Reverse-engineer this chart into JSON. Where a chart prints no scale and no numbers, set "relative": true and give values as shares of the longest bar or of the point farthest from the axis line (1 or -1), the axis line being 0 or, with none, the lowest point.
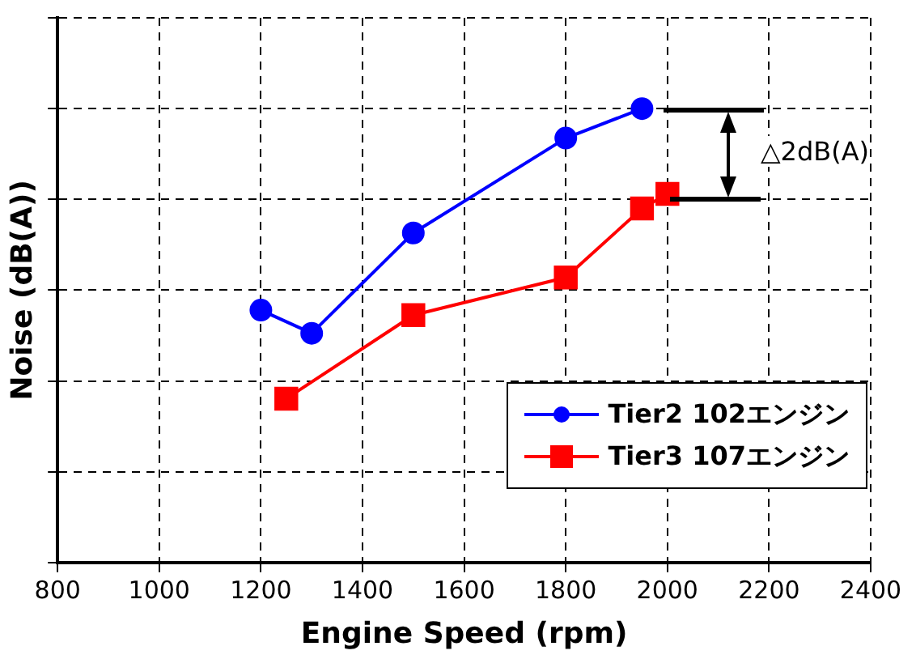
{
  "chart_data": {
    "type": "line",
    "relative": true,
    "xlabel": "Engine Speed (rpm)",
    "ylabel": "Noise (dB(A))",
    "xlim": [
      800,
      2400
    ],
    "xticks": [
      800,
      1000,
      1200,
      1400,
      1600,
      1800,
      2000,
      2200,
      2400
    ],
    "grid": true,
    "legend": "bottom right",
    "line_style": "solid",
    "annotations": [
      "△2dB(A)"
    ],
    "series": [
      {
        "name": "Tier2 102エンジン",
        "color": "#0000ff",
        "marker": "circle",
        "x": [
          1200,
          1300,
          1500,
          1800,
          1950
        ],
        "values": [
          0.556,
          0.505,
          0.726,
          0.935,
          1
        ]
      },
      {
        "name": "Tier3 107エンジン",
        "color": "#ff0000",
        "marker": "square",
        "x": [
          1250,
          1500,
          1800,
          1950,
          2000
        ],
        "values": [
          0.361,
          0.545,
          0.628,
          0.78,
          0.812
        ]
      }
    ]
  }
}
